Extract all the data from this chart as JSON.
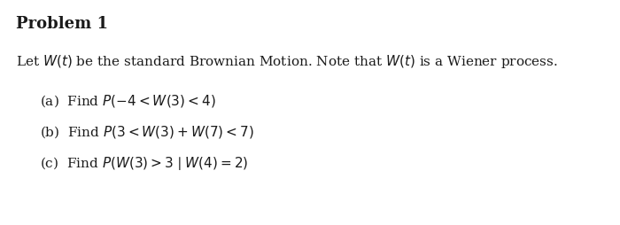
{
  "background_color": "#ffffff",
  "title": "Problem 1",
  "title_fontsize": 13,
  "title_fontweight": "bold",
  "title_family": "serif",
  "intro_text": "Let $W(t)$ be the standard Brownian Motion. Note that $W(t)$ is a Wiener process.",
  "intro_fontsize": 11,
  "parts": [
    {
      "label": "(a)",
      "text": "Find $P(-4 < W(3) < 4)$"
    },
    {
      "label": "(b)",
      "text": "Find $P(3 < W(3) + W(7) < 7)$"
    },
    {
      "label": "(c)",
      "text": "Find $P(W(3) > 3\\mid W(4) = 2)$"
    }
  ],
  "parts_fontsize": 11,
  "text_color": "#1a1a1a",
  "figwidth": 7.0,
  "figheight": 2.55,
  "dpi": 100
}
